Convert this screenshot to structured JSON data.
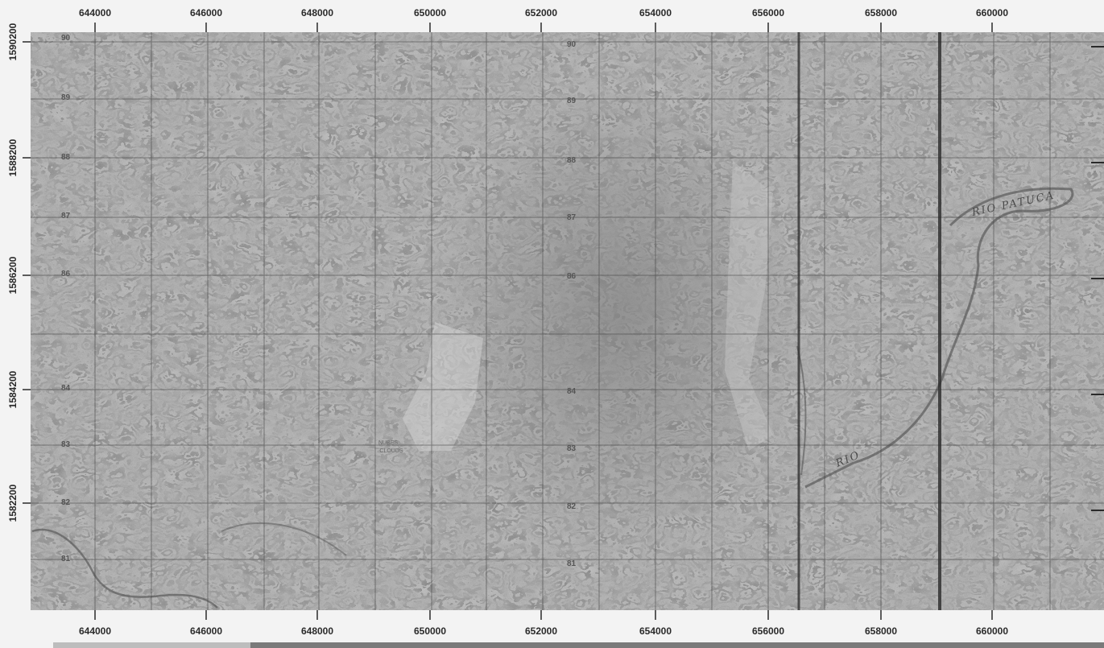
{
  "map": {
    "type": "topographic-map",
    "palette": {
      "background": "#f3f3f3",
      "map_fill": "#9a9a9a",
      "grid": "#3a3a3a",
      "text": "#2a2a2a"
    }
  },
  "axes": {
    "top_labels": [
      "644000",
      "646000",
      "648000",
      "650000",
      "652000",
      "654000",
      "656000",
      "658000",
      "660000"
    ],
    "bottom_labels": [
      "644000",
      "646000",
      "648000",
      "650000",
      "652000",
      "654000",
      "656000",
      "658000",
      "660000"
    ],
    "left_labels": [
      "1590200",
      "1588200",
      "1586200",
      "1584200",
      "1582200"
    ]
  },
  "grid_labels": {
    "west_col": [
      "90",
      "89",
      "88",
      "87",
      "86",
      "84",
      "83",
      "82",
      "81"
    ],
    "mid_col": [
      "90",
      "89",
      "88",
      "87",
      "86",
      "84",
      "83",
      "82",
      "81"
    ]
  },
  "features": {
    "place_label_1": "NUBES",
    "place_label_2": "CLOUDS",
    "river_1": "RIO PATUCA",
    "river_2": "RIO"
  }
}
